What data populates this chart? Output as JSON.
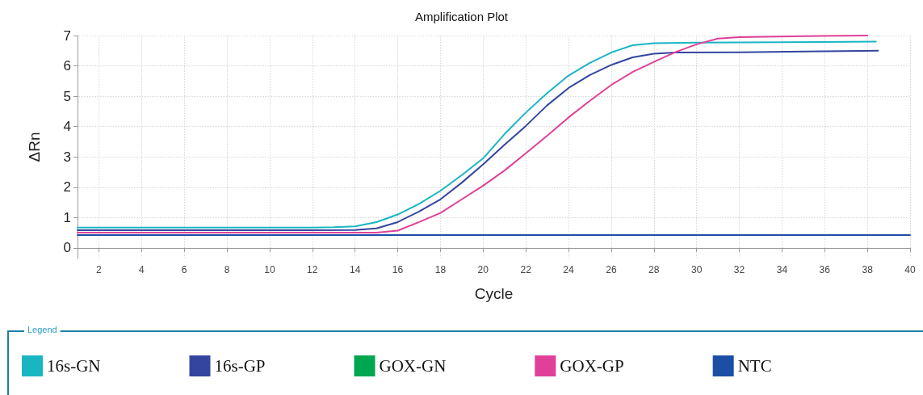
{
  "chart_data": {
    "type": "line",
    "title": "Amplification Plot",
    "xlabel": "Cycle",
    "ylabel": "ΔRn",
    "legend_title": "Legend",
    "xlim": [
      1,
      40
    ],
    "xticks": [
      2,
      4,
      6,
      8,
      10,
      12,
      14,
      16,
      18,
      20,
      22,
      24,
      26,
      28,
      30,
      32,
      34,
      36,
      38,
      40
    ],
    "ylim": [
      -0.35,
      7
    ],
    "yticks": [
      0,
      1,
      2,
      3,
      4,
      5,
      6,
      7
    ],
    "grid": true,
    "legend": "bottom",
    "marker": "none",
    "line_style": "solid",
    "series": [
      {
        "name": "16s-GN",
        "color": "#1ab5c3",
        "x": [
          1,
          4,
          8,
          12,
          13,
          14,
          15,
          16,
          17,
          18,
          19,
          20,
          21,
          22,
          23,
          24,
          25,
          26,
          27,
          28,
          30,
          34,
          38.4
        ],
        "values": [
          0.67,
          0.67,
          0.67,
          0.67,
          0.68,
          0.71,
          0.85,
          1.1,
          1.45,
          1.88,
          2.4,
          2.95,
          3.75,
          4.46,
          5.1,
          5.68,
          6.1,
          6.44,
          6.68,
          6.75,
          6.77,
          6.78,
          6.8
        ]
      },
      {
        "name": "16s-GP",
        "color": "#34459f",
        "x": [
          1,
          4,
          8,
          12,
          14,
          15,
          16,
          17,
          18,
          19,
          20,
          21,
          22,
          23,
          24,
          25,
          26,
          27,
          28,
          29,
          32,
          36,
          38.5
        ],
        "values": [
          0.58,
          0.58,
          0.58,
          0.58,
          0.59,
          0.64,
          0.85,
          1.2,
          1.6,
          2.15,
          2.75,
          3.4,
          4.02,
          4.7,
          5.27,
          5.7,
          6.03,
          6.28,
          6.4,
          6.44,
          6.45,
          6.48,
          6.5
        ]
      },
      {
        "name": "GOX-GN",
        "color": "#00a650"
      },
      {
        "name": "GOX-GP",
        "color": "#e0409a",
        "x": [
          1,
          4,
          8,
          12,
          15,
          16,
          17,
          18,
          19,
          20,
          21,
          22,
          23,
          24,
          25,
          26,
          27,
          28,
          29,
          30,
          31,
          32,
          35,
          38
        ],
        "values": [
          0.5,
          0.5,
          0.5,
          0.5,
          0.5,
          0.57,
          0.85,
          1.15,
          1.6,
          2.05,
          2.55,
          3.12,
          3.7,
          4.3,
          4.85,
          5.37,
          5.8,
          6.13,
          6.45,
          6.71,
          6.9,
          6.95,
          6.98,
          7.0
        ]
      },
      {
        "name": "NTC",
        "color": "#1c4ea6",
        "x": [
          1,
          40
        ],
        "values": [
          0.42,
          0.42
        ]
      }
    ]
  }
}
